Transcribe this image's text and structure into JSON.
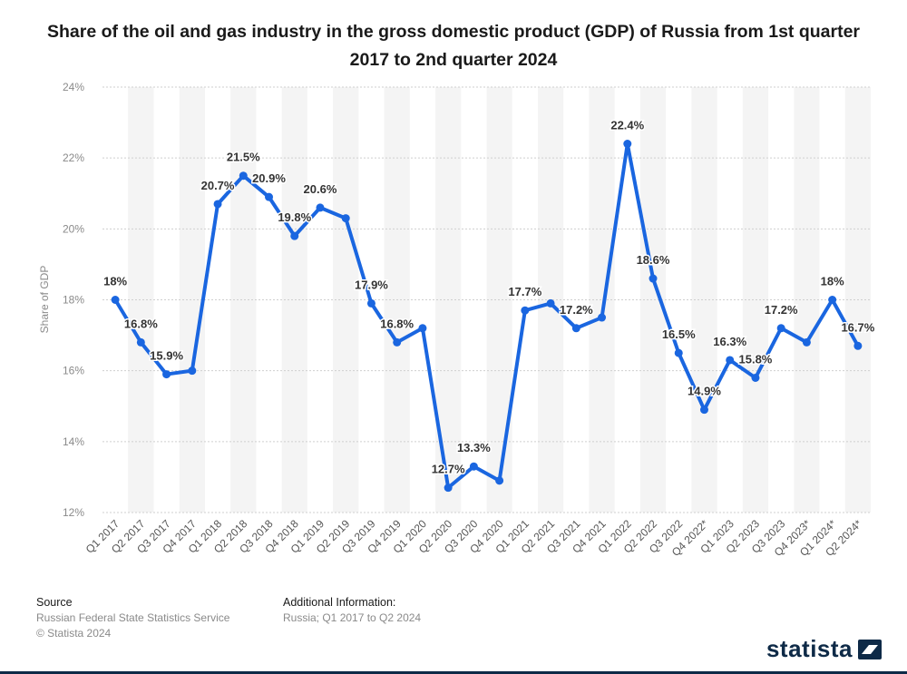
{
  "chart_data": {
    "type": "line",
    "title": "Share of the oil and gas industry in the gross domestic product (GDP) of Russia from 1st quarter 2017 to 2nd quarter 2024",
    "xlabel": "",
    "ylabel": "Share of GDP",
    "ylim": [
      12,
      24
    ],
    "yticks": [
      12,
      14,
      16,
      18,
      20,
      22,
      24
    ],
    "ytick_suffix": "%",
    "grid": true,
    "categories": [
      "Q1 2017",
      "Q2 2017",
      "Q3 2017",
      "Q4 2017",
      "Q1 2018",
      "Q2 2018",
      "Q3 2018",
      "Q4 2018",
      "Q1 2019",
      "Q2 2019",
      "Q3 2019",
      "Q4 2019",
      "Q1 2020",
      "Q2 2020",
      "Q3 2020",
      "Q4 2020",
      "Q1 2021",
      "Q2 2021",
      "Q3 2021",
      "Q4 2021",
      "Q1 2022",
      "Q2 2022",
      "Q3 2022",
      "Q4 2022*",
      "Q1 2023",
      "Q2 2023",
      "Q3 2023",
      "Q4 2023*",
      "Q1 2024*",
      "Q2 2024*"
    ],
    "series": [
      {
        "name": "Share of GDP",
        "color": "#1a66e0",
        "values": [
          18,
          16.8,
          15.9,
          16,
          20.7,
          21.5,
          20.9,
          19.8,
          20.6,
          20.3,
          17.9,
          16.8,
          17.2,
          12.7,
          13.3,
          12.9,
          17.7,
          17.9,
          17.2,
          17.5,
          22.4,
          18.6,
          16.5,
          14.9,
          16.3,
          15.8,
          17.2,
          16.8,
          18,
          16.7
        ],
        "labels": [
          "18%",
          "16.8%",
          "15.9%",
          "",
          "20.7%",
          "21.5%",
          "20.9%",
          "19.8%",
          "20.6%",
          "",
          "17.9%",
          "16.8%",
          "",
          "12.7%",
          "13.3%",
          "",
          "17.7%",
          "",
          "17.2%",
          "",
          "22.4%",
          "18.6%",
          "16.5%",
          "14.9%",
          "16.3%",
          "15.8%",
          "17.2%",
          "",
          "18%",
          "16.7%"
        ]
      }
    ]
  },
  "footer": {
    "source_heading": "Source",
    "source_line1": "Russian Federal State Statistics Service",
    "source_line2": "© Statista 2024",
    "info_heading": "Additional Information:",
    "info_line1": "Russia; Q1 2017 to Q2 2024"
  },
  "brand": {
    "name": "statista"
  }
}
